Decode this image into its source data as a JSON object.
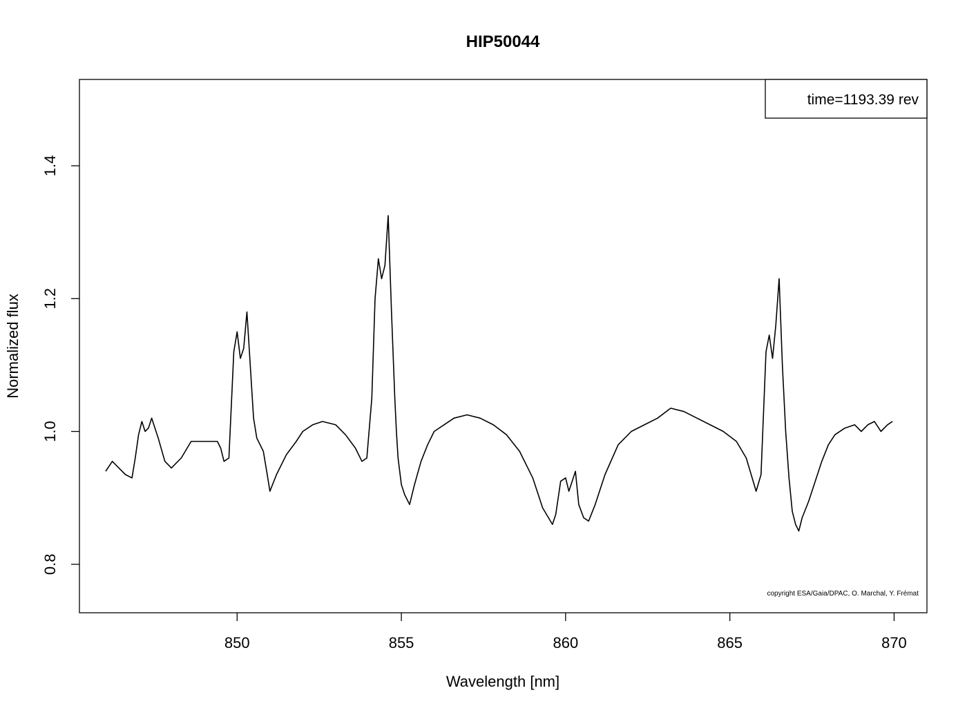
{
  "chart_data": {
    "type": "line",
    "title": "HIP50044",
    "xlabel": "Wavelength [nm]",
    "ylabel": "Normalized flux",
    "xlim": [
      845.2,
      871.0
    ],
    "ylim": [
      0.727,
      1.53
    ],
    "xticks": [
      850,
      855,
      860,
      865,
      870
    ],
    "xtick_labels": [
      "850",
      "855",
      "860",
      "865",
      "870"
    ],
    "yticks": [
      0.8,
      1.0,
      1.2,
      1.4
    ],
    "ytick_labels": [
      "0.8",
      "1.0",
      "1.2",
      "1.4"
    ],
    "grid": false,
    "legend": {
      "text": "time=1193.39 rev",
      "position": "top-right"
    },
    "annotation": "copyright ESA/Gaia/DPAC, O. Marchal, Y. Frémat",
    "line_color": "#000000",
    "series": [
      {
        "x": [
          846.0,
          846.2,
          846.4,
          846.6,
          846.8,
          846.9,
          847.0,
          847.1,
          847.2,
          847.3,
          847.4,
          847.6,
          847.8,
          848.0,
          848.3,
          848.6,
          849.0,
          849.4,
          849.5,
          849.6,
          849.75,
          849.9,
          850.0,
          850.1,
          850.2,
          850.3,
          850.4,
          850.5,
          850.6,
          850.8,
          850.9,
          851.0,
          851.2,
          851.5,
          851.8,
          852.0,
          852.3,
          852.6,
          853.0,
          853.3,
          853.6,
          853.8,
          853.95,
          854.1,
          854.2,
          854.3,
          854.4,
          854.5,
          854.6,
          854.7,
          854.8,
          854.85,
          854.9,
          855.0,
          855.1,
          855.25,
          855.4,
          855.6,
          855.8,
          856.0,
          856.3,
          856.6,
          857.0,
          857.4,
          857.8,
          858.2,
          858.6,
          859.0,
          859.3,
          859.6,
          859.7,
          859.85,
          860.0,
          860.1,
          860.2,
          860.3,
          860.4,
          860.55,
          860.7,
          860.9,
          861.2,
          861.6,
          862.0,
          862.4,
          862.8,
          863.2,
          863.6,
          864.0,
          864.4,
          864.8,
          865.2,
          865.5,
          865.8,
          865.95,
          866.1,
          866.2,
          866.3,
          866.4,
          866.5,
          866.6,
          866.7,
          866.8,
          866.9,
          867.0,
          867.1,
          867.2,
          867.4,
          867.6,
          867.8,
          868.0,
          868.2,
          868.5,
          868.8,
          869.0,
          869.2,
          869.4,
          869.6,
          869.8,
          869.95
        ],
        "y": [
          0.94,
          0.955,
          0.945,
          0.935,
          0.93,
          0.96,
          0.995,
          1.015,
          1.0,
          1.005,
          1.02,
          0.99,
          0.955,
          0.945,
          0.96,
          0.985,
          0.985,
          0.985,
          0.975,
          0.955,
          0.96,
          1.12,
          1.15,
          1.11,
          1.125,
          1.18,
          1.1,
          1.02,
          0.99,
          0.97,
          0.94,
          0.91,
          0.935,
          0.965,
          0.985,
          1.0,
          1.01,
          1.015,
          1.01,
          0.995,
          0.975,
          0.955,
          0.96,
          1.05,
          1.2,
          1.26,
          1.23,
          1.25,
          1.325,
          1.18,
          1.05,
          1.0,
          0.96,
          0.92,
          0.905,
          0.89,
          0.92,
          0.955,
          0.98,
          1.0,
          1.01,
          1.02,
          1.025,
          1.02,
          1.01,
          0.995,
          0.97,
          0.93,
          0.885,
          0.86,
          0.875,
          0.925,
          0.93,
          0.91,
          0.925,
          0.94,
          0.89,
          0.87,
          0.865,
          0.89,
          0.935,
          0.98,
          1.0,
          1.01,
          1.02,
          1.035,
          1.03,
          1.02,
          1.01,
          1.0,
          0.985,
          0.96,
          0.91,
          0.935,
          1.12,
          1.145,
          1.11,
          1.16,
          1.23,
          1.1,
          1.0,
          0.93,
          0.88,
          0.86,
          0.85,
          0.87,
          0.895,
          0.925,
          0.955,
          0.98,
          0.995,
          1.005,
          1.01,
          1.0,
          1.01,
          1.015,
          1.0,
          1.01,
          1.015
        ]
      }
    ]
  }
}
